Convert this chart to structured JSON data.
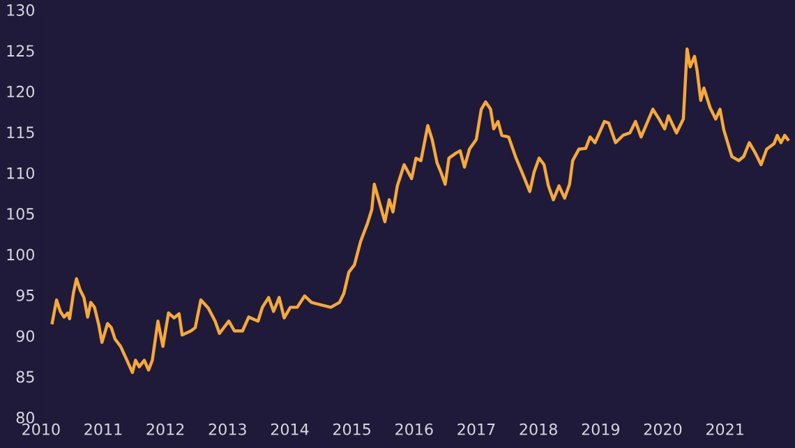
{
  "chart_data": {
    "type": "line",
    "color": "#f5a93a",
    "grid": false,
    "legend": false,
    "marker": "none",
    "line_style": "solid",
    "xlim": [
      2010,
      2022.1
    ],
    "xticks": [
      {
        "value": 2010,
        "label": "2010"
      },
      {
        "value": 2011,
        "label": "2011"
      },
      {
        "value": 2012,
        "label": "2012"
      },
      {
        "value": 2013,
        "label": "2013"
      },
      {
        "value": 2014,
        "label": "2014"
      },
      {
        "value": 2015,
        "label": "2015"
      },
      {
        "value": 2016,
        "label": "2016"
      },
      {
        "value": 2017,
        "label": "2017"
      },
      {
        "value": 2018,
        "label": "2018"
      },
      {
        "value": 2019,
        "label": "2019"
      },
      {
        "value": 2020,
        "label": "2020"
      },
      {
        "value": 2021,
        "label": "2021"
      }
    ],
    "ylim": [
      80,
      130
    ],
    "yticks": [
      80,
      85,
      90,
      95,
      100,
      105,
      110,
      115,
      120,
      125,
      130
    ],
    "x": [
      2010.18,
      2010.25,
      2010.31,
      2010.37,
      2010.43,
      2010.46,
      2010.52,
      2010.57,
      2010.63,
      2010.69,
      2010.75,
      2010.8,
      2010.86,
      2010.93,
      2010.98,
      2011.07,
      2011.13,
      2011.19,
      2011.28,
      2011.37,
      2011.47,
      2011.52,
      2011.58,
      2011.66,
      2011.73,
      2011.79,
      2011.88,
      2011.96,
      2012.05,
      2012.14,
      2012.22,
      2012.27,
      2012.41,
      2012.48,
      2012.57,
      2012.69,
      2012.8,
      2012.87,
      2013.02,
      2013.11,
      2013.24,
      2013.34,
      2013.49,
      2013.56,
      2013.66,
      2013.74,
      2013.83,
      2013.91,
      2014.01,
      2014.12,
      2014.24,
      2014.35,
      2014.5,
      2014.66,
      2014.8,
      2014.87,
      2014.95,
      2015.04,
      2015.14,
      2015.25,
      2015.32,
      2015.36,
      2015.43,
      2015.53,
      2015.6,
      2015.66,
      2015.73,
      2015.84,
      2015.96,
      2016.03,
      2016.11,
      2016.22,
      2016.29,
      2016.37,
      2016.43,
      2016.5,
      2016.56,
      2016.67,
      2016.74,
      2016.81,
      2016.89,
      2017.0,
      2017.08,
      2017.15,
      2017.23,
      2017.28,
      2017.35,
      2017.41,
      2017.52,
      2017.64,
      2017.75,
      2017.86,
      2017.93,
      2018.01,
      2018.09,
      2018.16,
      2018.24,
      2018.33,
      2018.42,
      2018.5,
      2018.55,
      2018.65,
      2018.76,
      2018.83,
      2018.91,
      2019.06,
      2019.13,
      2019.24,
      2019.36,
      2019.47,
      2019.56,
      2019.65,
      2019.84,
      2019.94,
      2020.03,
      2020.09,
      2020.22,
      2020.33,
      2020.39,
      2020.44,
      2020.51,
      2020.55,
      2020.61,
      2020.66,
      2020.76,
      2020.85,
      2020.92,
      2020.98,
      2021.11,
      2021.22,
      2021.3,
      2021.39,
      2021.49,
      2021.58,
      2021.67,
      2021.79,
      2021.84,
      2021.9,
      2021.96,
      2022.01
    ],
    "values": [
      91.6,
      94.4,
      93.0,
      92.3,
      92.8,
      92.1,
      95.2,
      97.0,
      95.6,
      94.7,
      92.3,
      94.1,
      93.5,
      91.3,
      89.2,
      91.5,
      91.0,
      89.6,
      88.7,
      87.2,
      85.5,
      87.0,
      86.2,
      87.0,
      85.8,
      87.0,
      91.8,
      88.7,
      92.8,
      92.2,
      92.7,
      90.1,
      90.6,
      91.0,
      94.4,
      93.4,
      91.8,
      90.3,
      91.8,
      90.6,
      90.6,
      92.3,
      91.8,
      93.5,
      94.7,
      93.0,
      94.7,
      92.2,
      93.5,
      93.5,
      94.9,
      94.1,
      93.8,
      93.5,
      94.1,
      95.2,
      97.8,
      98.7,
      101.6,
      103.8,
      105.5,
      108.6,
      106.7,
      104.0,
      106.7,
      105.2,
      108.4,
      111.0,
      109.3,
      111.8,
      111.5,
      115.8,
      114.1,
      111.2,
      110.1,
      108.6,
      111.8,
      112.4,
      112.7,
      110.7,
      112.9,
      114.1,
      117.8,
      118.7,
      117.8,
      115.4,
      116.3,
      114.6,
      114.4,
      111.8,
      109.8,
      107.7,
      110.1,
      111.8,
      111.0,
      108.4,
      106.7,
      108.4,
      106.9,
      108.6,
      111.5,
      112.9,
      113.0,
      114.4,
      113.7,
      116.3,
      116.1,
      113.7,
      114.6,
      114.9,
      116.3,
      114.4,
      117.8,
      116.6,
      115.4,
      117.0,
      114.9,
      116.6,
      125.2,
      123.0,
      124.3,
      122.6,
      118.9,
      120.4,
      118.0,
      116.6,
      117.8,
      115.3,
      112.0,
      111.5,
      112.0,
      113.7,
      112.4,
      111.0,
      112.9,
      113.6,
      114.6,
      113.7,
      114.6,
      114.1
    ]
  }
}
